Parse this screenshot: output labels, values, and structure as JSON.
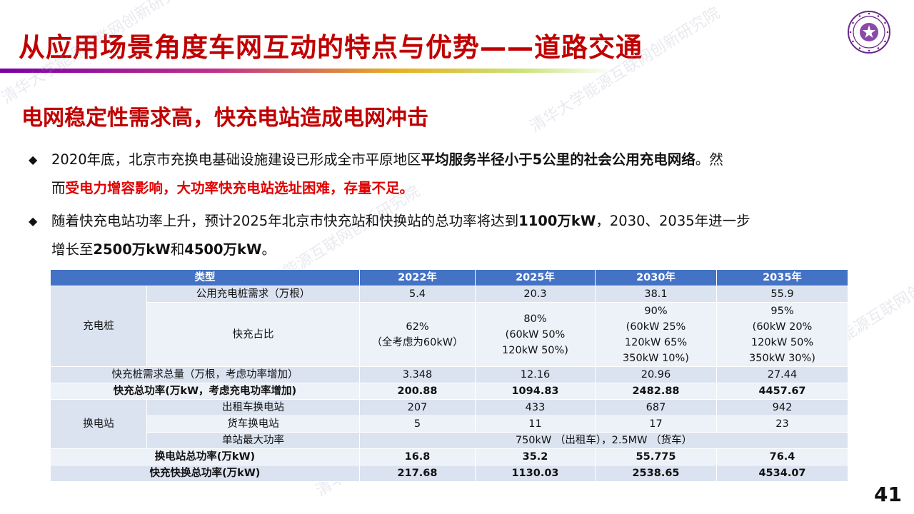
{
  "title": "从应用场景角度车网互动的特点与优势——道路交通",
  "subtitle": "电网稳定性需求高，快充电站造成电网冲击",
  "bullets": [
    {
      "symbol": "◆",
      "t1": "2020年底，北京市充换电基础设施建设已形成全市平原地区",
      "b1": "平均服务半径小于5公里的社会公用充电网络",
      "t2": "。然",
      "line2_a": "而",
      "line2_red": "受电力增容影响，大功率快充电站选址困难，存量不足。"
    },
    {
      "symbol": "◆",
      "t1": "随着快充电站功率上升，预计2025年北京市快充站和快换站的总功率将达到",
      "b1": "1100万kW",
      "t2": "，2030、2035年进一步",
      "line2_a": "增长至",
      "b2": "2500万kW",
      "t3": "和",
      "b3": "4500万kW",
      "t4": "。"
    }
  ],
  "table": {
    "headers": [
      "类型",
      "2022年",
      "2025年",
      "2030年",
      "2035年"
    ],
    "charging_pile": "充电桩",
    "public_demand": {
      "label": "公用充电桩需求（万根）",
      "values": [
        "5.4",
        "20.3",
        "38.1",
        "55.9"
      ]
    },
    "fast_ratio": {
      "label": "快充占比",
      "values": [
        [
          "62%",
          "（全考虑为60kW）"
        ],
        [
          "80%",
          "(60kW 50%",
          "120kW 50%)"
        ],
        [
          "90%",
          "(60kW 25%",
          "120kW 65%",
          "350kW 10%)"
        ],
        [
          "95%",
          "(60kW 20%",
          "120kW 50%",
          "350kW 30%)"
        ]
      ]
    },
    "fast_total": {
      "label": "快充桩需求总量（万根，考虑功率增加）",
      "values": [
        "3.348",
        "12.16",
        "20.96",
        "27.44"
      ]
    },
    "fast_power": {
      "label": "快充总功率(万kW，考虑充电功率增加)",
      "values": [
        "200.88",
        "1094.83",
        "2482.88",
        "4457.67"
      ]
    },
    "swap_station": "换电站",
    "taxi_swap": {
      "label": "出租车换电站",
      "values": [
        "207",
        "433",
        "687",
        "942"
      ]
    },
    "truck_swap": {
      "label": "货车换电站",
      "values": [
        "5",
        "11",
        "17",
        "23"
      ]
    },
    "max_power": {
      "label": "单站最大功率",
      "value": "750kW （出租车），2.5MW （货车）"
    },
    "swap_power": {
      "label": "换电站总功率(万kW)",
      "values": [
        "16.8",
        "35.2",
        "55.775",
        "76.4"
      ]
    },
    "total_power": {
      "label": "快充快换总功率(万kW)",
      "values": [
        "217.68",
        "1130.03",
        "2538.65",
        "4534.07"
      ]
    }
  },
  "page_number": "41",
  "watermark": "清华大学能源互联网创新研究院",
  "colors": {
    "title_red": "#c00000",
    "header_blue": "#4472c4",
    "cell_light": "#dbe3f0",
    "cell_lighter": "#edf1f8"
  }
}
